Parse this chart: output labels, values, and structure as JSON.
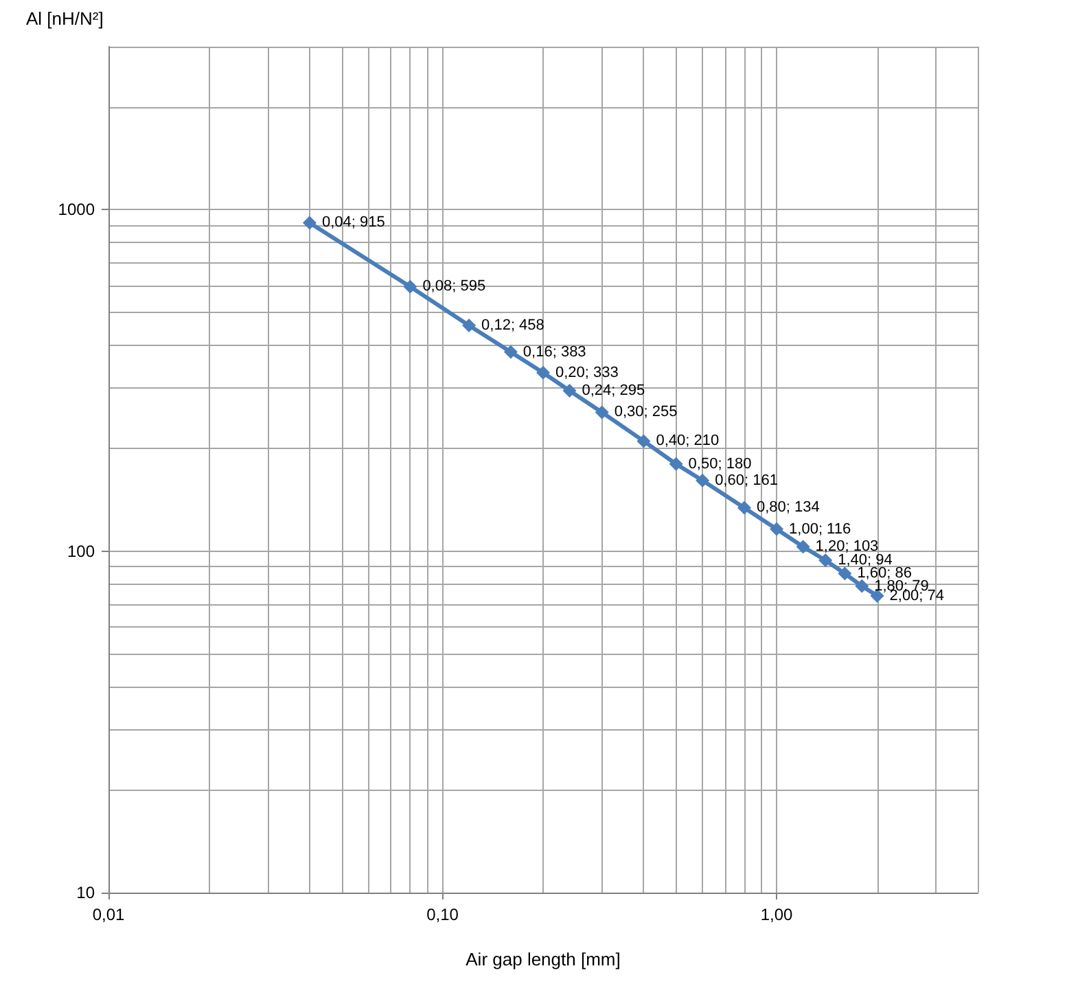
{
  "chart_data": {
    "type": "line",
    "xlabel": "Air gap length [mm]",
    "ylabel": "Al [nH/N²]",
    "x": [
      0.04,
      0.08,
      0.12,
      0.16,
      0.2,
      0.24,
      0.3,
      0.4,
      0.5,
      0.6,
      0.8,
      1.0,
      1.2,
      1.4,
      1.6,
      1.8,
      2.0
    ],
    "series": [
      {
        "color": "#4a7ebb",
        "values": [
          915,
          595,
          458,
          383,
          333,
          295,
          255,
          210,
          180,
          161,
          134,
          116,
          103,
          94,
          86,
          79,
          74
        ],
        "value_labels": [
          "0,04; 915",
          "0,08; 595",
          "0,12; 458",
          "0,16; 383",
          "0,20; 333",
          "0,24; 295",
          "0,30; 255",
          "0,40; 210",
          "0,50; 180",
          "0,60; 161",
          "0,80; 134",
          "1,00; 116",
          "1,20; 103",
          "1,40; 94",
          "1,60; 86",
          "1,80; 79",
          "2,00; 74"
        ]
      }
    ],
    "log": "xy",
    "xlim": [
      0.01,
      4
    ],
    "ylim": [
      10,
      3000
    ],
    "xticks": [
      {
        "value": 0.01,
        "label": "0,01"
      },
      {
        "value": 0.1,
        "label": "0,10"
      },
      {
        "value": 1,
        "label": "1,00"
      }
    ],
    "yticks": [
      10,
      100,
      1000
    ],
    "grid": true,
    "marker": "diamond",
    "line_style": "solid"
  }
}
